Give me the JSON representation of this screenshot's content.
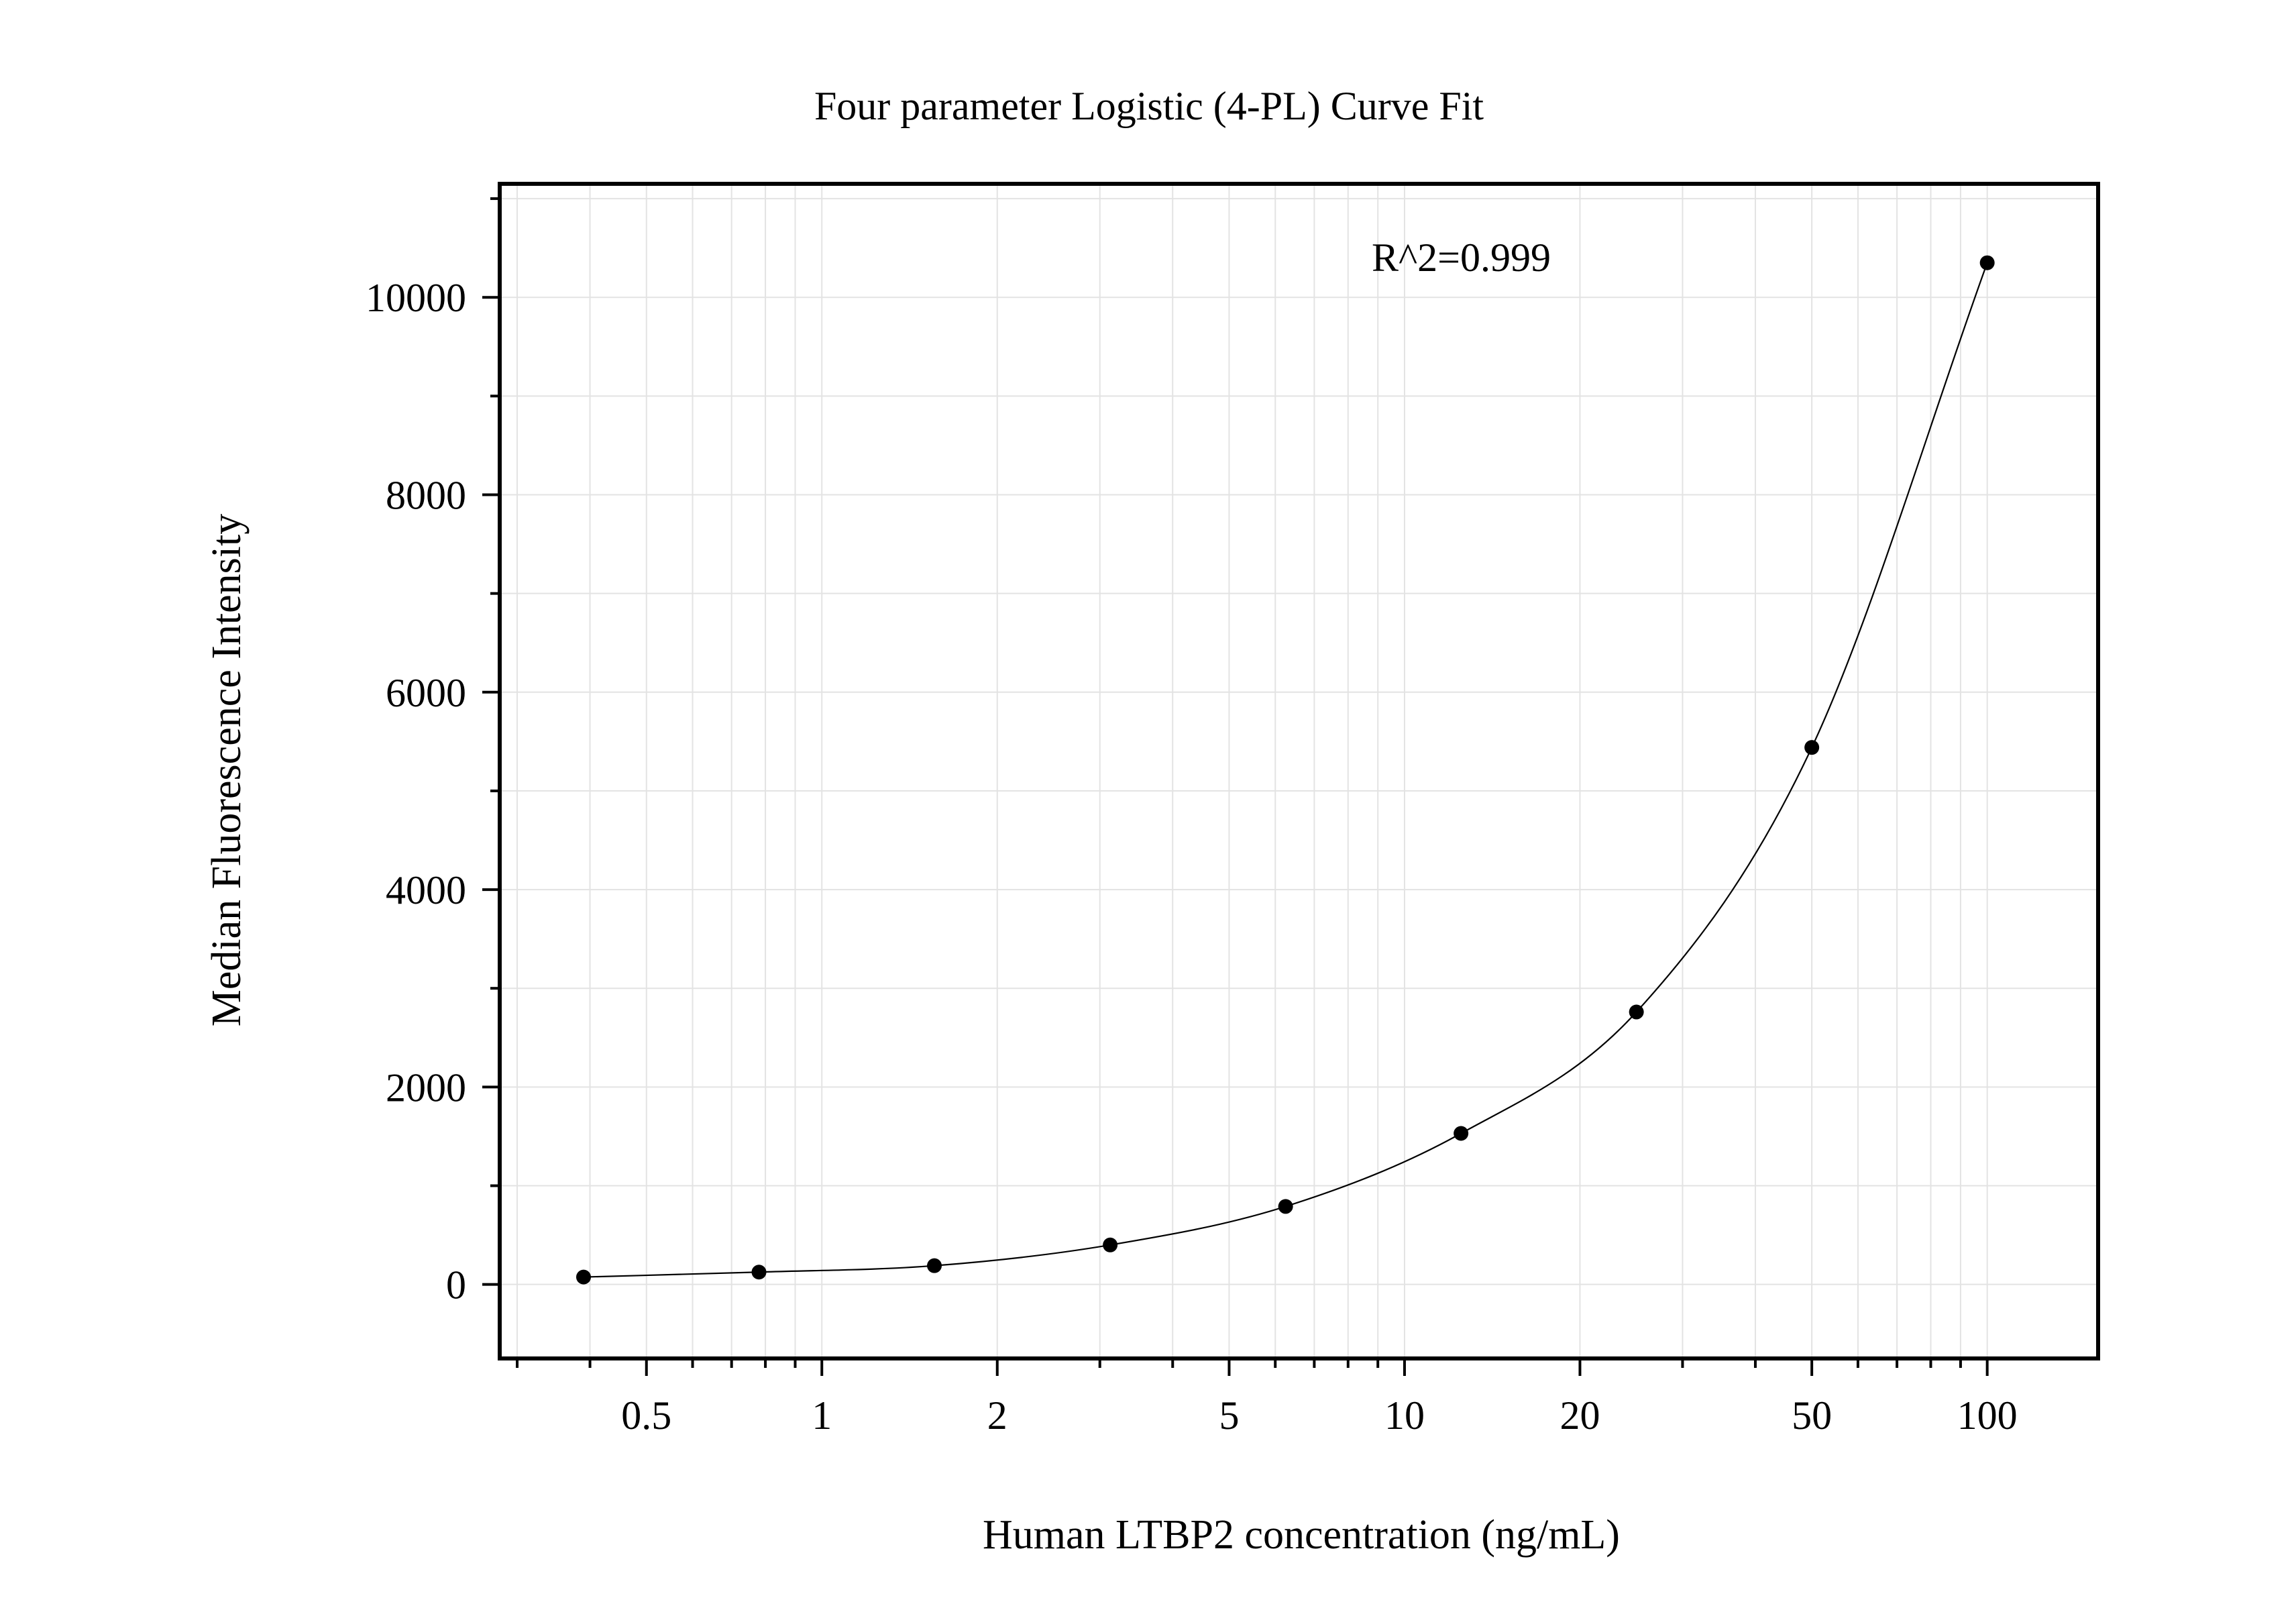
{
  "chart_data": {
    "type": "scatter",
    "title": "Four parameter Logistic (4-PL) Curve Fit",
    "xlabel": "Human LTBP2 concentration (ng/mL)",
    "ylabel": "Median Fluorescence Intensity",
    "x_scale": "log",
    "xlim": [
      0.28,
      155
    ],
    "ylim": [
      -750,
      11150
    ],
    "x_ticks": [
      "0.5",
      "1",
      "2",
      "5",
      "10",
      "20",
      "50",
      "100"
    ],
    "y_ticks": [
      "0",
      "2000",
      "4000",
      "6000",
      "8000",
      "10000"
    ],
    "grid": true,
    "annotation": "R^2=0.999",
    "series": [
      {
        "x": [
          0.39,
          0.78,
          1.56,
          3.125,
          6.25,
          12.5,
          25,
          50,
          100
        ],
        "y": [
          75,
          125,
          190,
          400,
          790,
          1530,
          2760,
          5440,
          10350
        ]
      }
    ]
  }
}
